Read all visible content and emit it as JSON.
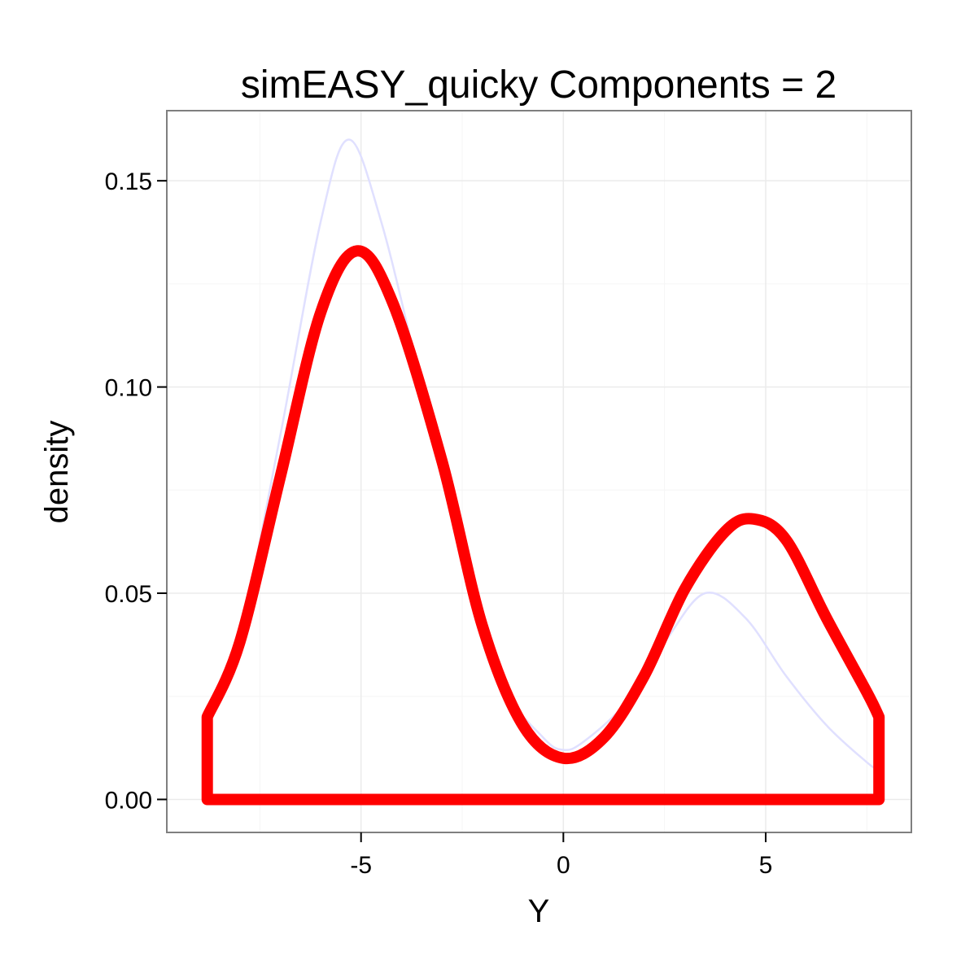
{
  "chart_data": {
    "type": "line",
    "title": "simEASY_quicky  Components =  2",
    "xlabel": "Y",
    "ylabel": "density",
    "xlim": [
      -9.8,
      8.6
    ],
    "ylim": [
      -0.008,
      0.167
    ],
    "xticks": [
      -5,
      0,
      5
    ],
    "xtick_labels": [
      "-5",
      "0",
      "5"
    ],
    "yticks": [
      0.0,
      0.05,
      0.1,
      0.15
    ],
    "ytick_labels": [
      "0.00",
      "0.05",
      "0.10",
      "0.15"
    ],
    "grid": true,
    "series": [
      {
        "style": "thin-line",
        "color": "#e0e0ff",
        "x": [
          -8.8,
          -8.0,
          -7.0,
          -6.0,
          -5.3,
          -4.5,
          -3.5,
          -2.5,
          -1.5,
          -0.5,
          0.0,
          0.5,
          1.5,
          2.5,
          3.5,
          4.5,
          5.5,
          6.5,
          7.5,
          7.8
        ],
        "y": [
          0.02,
          0.04,
          0.088,
          0.14,
          0.16,
          0.14,
          0.1,
          0.058,
          0.028,
          0.015,
          0.012,
          0.014,
          0.023,
          0.038,
          0.05,
          0.044,
          0.03,
          0.018,
          0.009,
          0.007
        ]
      },
      {
        "style": "thick-line",
        "color": "#ff0000",
        "x": [
          -8.8,
          -8.0,
          -7.0,
          -6.0,
          -5.1,
          -4.2,
          -3.0,
          -2.0,
          -1.0,
          0.0,
          1.0,
          2.0,
          3.0,
          4.0,
          4.7,
          5.5,
          6.5,
          7.5,
          7.8
        ],
        "y": [
          0.02,
          0.038,
          0.078,
          0.118,
          0.133,
          0.12,
          0.082,
          0.042,
          0.018,
          0.01,
          0.015,
          0.03,
          0.051,
          0.065,
          0.068,
          0.063,
          0.044,
          0.026,
          0.02
        ]
      }
    ],
    "colors": {
      "panel_border": "#7f7f7f",
      "grid_major": "#ebebeb",
      "grid_minor": "#f5f5f5",
      "tick": "#000000"
    }
  }
}
